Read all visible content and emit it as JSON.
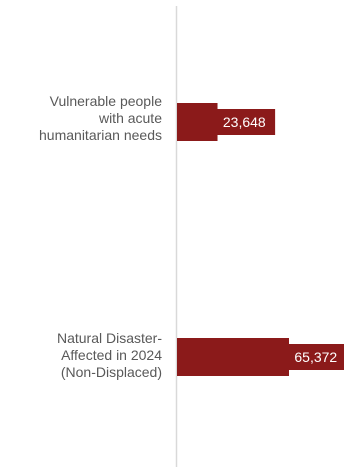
{
  "chart_data": {
    "type": "bar",
    "orientation": "horizontal",
    "categories": [
      "Vulnerable people\nwith acute\nhumanitarian needs",
      "Natural Disaster-\nAffected in 2024\n(Non-Displaced)"
    ],
    "values": [
      23648,
      65372
    ],
    "value_labels": [
      "23,648",
      "65,372"
    ],
    "title": "",
    "xlabel": "",
    "ylabel": "",
    "grid": false,
    "legend": "none",
    "colors": {
      "bar": "#8b1a1a",
      "axis": "#d9d9d9",
      "category_text": "#595959",
      "value_text": "#ffffff"
    }
  }
}
